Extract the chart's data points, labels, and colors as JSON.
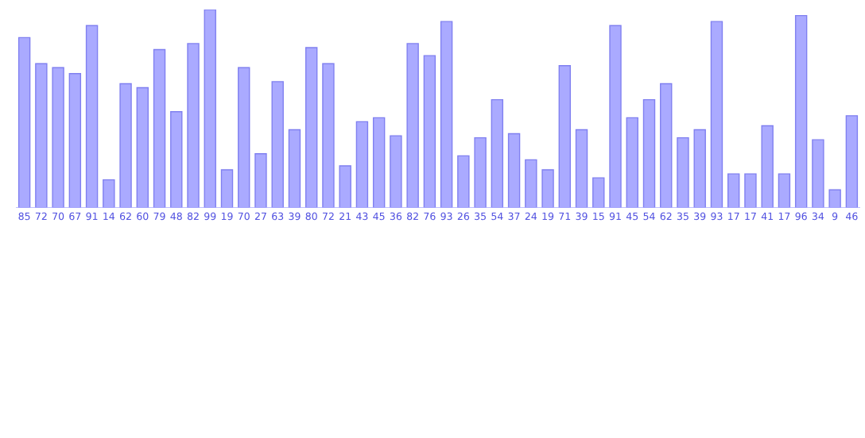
{
  "chart_data": {
    "type": "bar",
    "categories": [
      null,
      null,
      null,
      null,
      null,
      null,
      null,
      null,
      null,
      null,
      null,
      null,
      null,
      null,
      null,
      null,
      null,
      null,
      null,
      null,
      null,
      null,
      null,
      null,
      null,
      null,
      null,
      null,
      null,
      null,
      null,
      null,
      null,
      null,
      null,
      null,
      null,
      null,
      null,
      null,
      null,
      null,
      null,
      null,
      null,
      null,
      null,
      null,
      null,
      null
    ],
    "values": [
      85,
      72,
      70,
      67,
      91,
      14,
      62,
      60,
      79,
      48,
      82,
      99,
      19,
      70,
      27,
      63,
      39,
      80,
      72,
      21,
      43,
      45,
      36,
      82,
      76,
      93,
      26,
      35,
      54,
      37,
      24,
      19,
      71,
      39,
      15,
      91,
      45,
      54,
      62,
      35,
      39,
      93,
      17,
      17,
      41,
      17,
      96,
      34,
      9,
      46
    ],
    "color": "#aaaaff",
    "data_labels": true
  }
}
